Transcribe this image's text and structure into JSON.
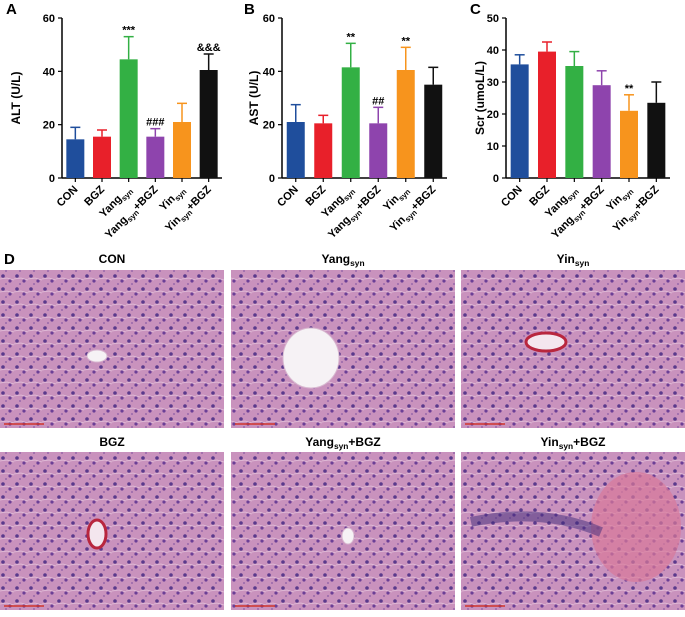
{
  "chart_data": [
    {
      "type": "bar",
      "panel_label": "A",
      "ylabel": "ALT (U/L)",
      "categories": [
        [
          "CON"
        ],
        [
          "BGZ"
        ],
        [
          "Yang",
          "syn"
        ],
        [
          "Yang",
          "syn",
          "+BGZ"
        ],
        [
          "Yin",
          "syn"
        ],
        [
          "Yin",
          "syn",
          "+BGZ"
        ]
      ],
      "values": [
        14.5,
        15.5,
        44.5,
        15.5,
        21,
        40.5
      ],
      "errors": [
        4.5,
        2.5,
        8.5,
        3,
        7,
        6
      ],
      "colors": [
        "#1f4e9c",
        "#e8202a",
        "#33b044",
        "#8e44ad",
        "#f7941d",
        "#111111"
      ],
      "annotations": [
        null,
        null,
        "***",
        "###",
        null,
        "&&&"
      ],
      "ylim": [
        0,
        60
      ],
      "yticks": [
        0,
        20,
        40,
        60
      ]
    },
    {
      "type": "bar",
      "panel_label": "B",
      "ylabel": "AST (U/L)",
      "categories": [
        [
          "CON"
        ],
        [
          "BGZ"
        ],
        [
          "Yang",
          "syn"
        ],
        [
          "Yang",
          "syn",
          "+BGZ"
        ],
        [
          "Yin",
          "syn"
        ],
        [
          "Yin",
          "syn",
          "+BGZ"
        ]
      ],
      "values": [
        21,
        20.5,
        41.5,
        20.5,
        40.5,
        35
      ],
      "errors": [
        6.5,
        3,
        9,
        6,
        8.5,
        6.5
      ],
      "colors": [
        "#1f4e9c",
        "#e8202a",
        "#33b044",
        "#8e44ad",
        "#f7941d",
        "#111111"
      ],
      "annotations": [
        null,
        null,
        "**",
        "##",
        "**",
        null
      ],
      "ylim": [
        0,
        60
      ],
      "yticks": [
        0,
        20,
        40,
        60
      ]
    },
    {
      "type": "bar",
      "panel_label": "C",
      "ylabel": "Scr (umoL/L)",
      "categories": [
        [
          "CON"
        ],
        [
          "BGZ"
        ],
        [
          "Yang",
          "syn"
        ],
        [
          "Yang",
          "syn",
          "+BGZ"
        ],
        [
          "Yin",
          "syn"
        ],
        [
          "Yin",
          "syn",
          "+BGZ"
        ]
      ],
      "values": [
        35.5,
        39.5,
        35,
        29,
        21,
        23.5
      ],
      "errors": [
        3,
        3,
        4.5,
        4.5,
        5,
        6.5
      ],
      "colors": [
        "#1f4e9c",
        "#e8202a",
        "#33b044",
        "#8e44ad",
        "#f7941d",
        "#111111"
      ],
      "annotations": [
        null,
        null,
        null,
        null,
        "**",
        null
      ],
      "ylim": [
        0,
        50
      ],
      "yticks": [
        0,
        10,
        20,
        30,
        40,
        50
      ]
    }
  ],
  "histology": {
    "panel_label": "D",
    "images": [
      {
        "title": [
          "CON"
        ]
      },
      {
        "title": [
          "Yang",
          "syn"
        ]
      },
      {
        "title": [
          "Yin",
          "syn"
        ]
      },
      {
        "title": [
          "BGZ"
        ]
      },
      {
        "title": [
          "Yang",
          "syn",
          "+BGZ"
        ]
      },
      {
        "title": [
          "Yin",
          "syn",
          "+BGZ"
        ]
      }
    ]
  }
}
